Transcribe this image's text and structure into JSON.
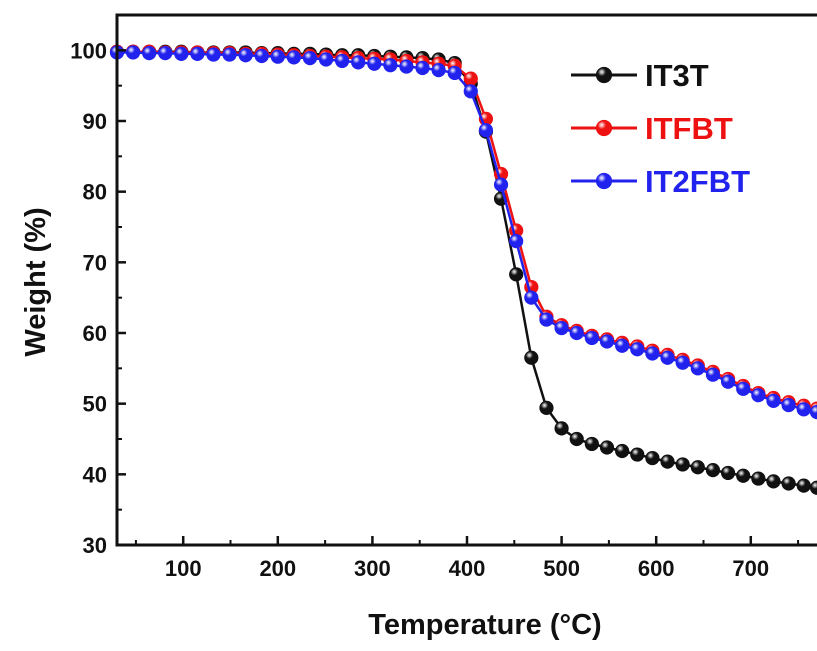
{
  "chart_data": {
    "type": "line",
    "title": "",
    "xlabel": "Temperature (°C)",
    "ylabel": "Weight (%)",
    "xlim": [
      30,
      770
    ],
    "ylim": [
      30,
      105
    ],
    "xticks": [
      100,
      200,
      300,
      400,
      500,
      600,
      700
    ],
    "yticks": [
      30,
      40,
      50,
      60,
      70,
      80,
      90,
      100
    ],
    "xtick_labels": [
      "100",
      "200",
      "300",
      "400",
      "500",
      "600",
      "700"
    ],
    "ytick_labels": [
      "30",
      "40",
      "50",
      "60",
      "70",
      "80",
      "90",
      "100"
    ],
    "grid": false,
    "legend_position": "top-right",
    "series": [
      {
        "name": "IT3T",
        "color": "#111111",
        "x": [
          30,
          47,
          64,
          81,
          98,
          115,
          132,
          149,
          166,
          183,
          200,
          217,
          234,
          251,
          268,
          285,
          302,
          319,
          336,
          353,
          370,
          387,
          404,
          420,
          436,
          452,
          468,
          484,
          500,
          516,
          532,
          548,
          564,
          580,
          596,
          612,
          628,
          644,
          660,
          676,
          692,
          708,
          724,
          740,
          756,
          770
        ],
        "values": [
          99.8,
          99.8,
          99.8,
          99.8,
          99.8,
          99.7,
          99.7,
          99.7,
          99.7,
          99.6,
          99.6,
          99.5,
          99.5,
          99.4,
          99.3,
          99.3,
          99.2,
          99.1,
          99.0,
          98.9,
          98.7,
          98.2,
          95.3,
          88.5,
          79.0,
          68.3,
          56.5,
          49.4,
          46.5,
          45.0,
          44.3,
          43.8,
          43.3,
          42.8,
          42.3,
          41.8,
          41.4,
          41.0,
          40.6,
          40.2,
          39.8,
          39.4,
          39.0,
          38.7,
          38.4,
          38.1
        ]
      },
      {
        "name": "ITFBT",
        "color": "#ee1111",
        "x": [
          30,
          47,
          64,
          81,
          98,
          115,
          132,
          149,
          166,
          183,
          200,
          217,
          234,
          251,
          268,
          285,
          302,
          319,
          336,
          353,
          370,
          387,
          404,
          420,
          436,
          452,
          468,
          484,
          500,
          516,
          532,
          548,
          564,
          580,
          596,
          612,
          628,
          644,
          660,
          676,
          692,
          708,
          724,
          740,
          756,
          770
        ],
        "values": [
          99.8,
          99.8,
          99.8,
          99.7,
          99.7,
          99.7,
          99.6,
          99.6,
          99.5,
          99.5,
          99.4,
          99.3,
          99.2,
          99.1,
          99.0,
          98.9,
          98.8,
          98.7,
          98.5,
          98.3,
          98.1,
          97.8,
          96.0,
          90.3,
          82.5,
          74.5,
          66.5,
          62.3,
          61.1,
          60.3,
          59.6,
          59.1,
          58.6,
          58.1,
          57.5,
          56.9,
          56.2,
          55.4,
          54.5,
          53.5,
          52.5,
          51.5,
          50.8,
          50.2,
          49.7,
          49.3
        ]
      },
      {
        "name": "IT2FBT",
        "color": "#2222ee",
        "x": [
          30,
          47,
          64,
          81,
          98,
          115,
          132,
          149,
          166,
          183,
          200,
          217,
          234,
          251,
          268,
          285,
          302,
          319,
          336,
          353,
          370,
          387,
          404,
          420,
          436,
          452,
          468,
          484,
          500,
          516,
          532,
          548,
          564,
          580,
          596,
          612,
          628,
          644,
          660,
          676,
          692,
          708,
          724,
          740,
          756,
          770
        ],
        "values": [
          99.7,
          99.7,
          99.6,
          99.6,
          99.5,
          99.5,
          99.4,
          99.4,
          99.3,
          99.2,
          99.1,
          99.0,
          98.9,
          98.7,
          98.5,
          98.3,
          98.1,
          97.9,
          97.7,
          97.5,
          97.2,
          96.8,
          94.2,
          88.7,
          81.0,
          73.0,
          65.0,
          61.9,
          60.7,
          60.0,
          59.3,
          58.8,
          58.2,
          57.7,
          57.1,
          56.5,
          55.8,
          55.0,
          54.1,
          53.1,
          52.1,
          51.2,
          50.4,
          49.8,
          49.2,
          48.8
        ]
      }
    ]
  }
}
